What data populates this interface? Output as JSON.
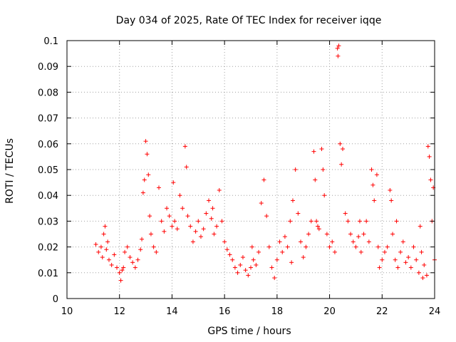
{
  "chart_data": {
    "type": "scatter",
    "title": "Day 034 of 2025, Rate Of TEC Index for receiver iqqe",
    "xlabel": "GPS time / hours",
    "ylabel": "ROTI / TECUs",
    "xlim": [
      10,
      24
    ],
    "ylim": [
      0,
      0.1
    ],
    "x_ticks": [
      10,
      12,
      14,
      16,
      18,
      20,
      22,
      24
    ],
    "y_ticks": [
      0,
      0.01,
      0.02,
      0.03,
      0.04,
      0.05,
      0.06,
      0.07,
      0.08,
      0.09,
      0.1
    ],
    "x_tick_labels": [
      "10",
      "12",
      "14",
      "16",
      "18",
      "20",
      "22",
      "24"
    ],
    "y_tick_labels": [
      "0",
      "0.01",
      "0.02",
      "0.03",
      "0.04",
      "0.05",
      "0.06",
      "0.07",
      "0.08",
      "0.09",
      "0.1"
    ],
    "grid": true,
    "marker": "plus",
    "color": "#ff0000",
    "series": [
      {
        "points": [
          [
            11.1,
            0.021
          ],
          [
            11.2,
            0.018
          ],
          [
            11.3,
            0.02
          ],
          [
            11.35,
            0.016
          ],
          [
            11.4,
            0.025
          ],
          [
            11.45,
            0.028
          ],
          [
            11.5,
            0.019
          ],
          [
            11.55,
            0.022
          ],
          [
            11.6,
            0.015
          ],
          [
            11.7,
            0.013
          ],
          [
            11.8,
            0.017
          ],
          [
            11.9,
            0.012
          ],
          [
            12.0,
            0.01
          ],
          [
            12.05,
            0.007
          ],
          [
            12.1,
            0.011
          ],
          [
            12.2,
            0.018
          ],
          [
            12.3,
            0.02
          ],
          [
            12.4,
            0.016
          ],
          [
            12.5,
            0.014
          ],
          [
            12.6,
            0.012
          ],
          [
            12.7,
            0.015
          ],
          [
            12.8,
            0.019
          ],
          [
            12.85,
            0.023
          ],
          [
            12.9,
            0.041
          ],
          [
            12.95,
            0.046
          ],
          [
            13.0,
            0.061
          ],
          [
            13.05,
            0.056
          ],
          [
            13.1,
            0.048
          ],
          [
            13.15,
            0.032
          ],
          [
            13.2,
            0.025
          ],
          [
            13.3,
            0.02
          ],
          [
            13.4,
            0.018
          ],
          [
            13.5,
            0.043
          ],
          [
            13.6,
            0.03
          ],
          [
            13.7,
            0.026
          ],
          [
            13.8,
            0.035
          ],
          [
            13.9,
            0.032
          ],
          [
            14.0,
            0.028
          ],
          [
            14.1,
            0.03
          ],
          [
            14.2,
            0.027
          ],
          [
            14.3,
            0.04
          ],
          [
            14.4,
            0.035
          ],
          [
            14.5,
            0.059
          ],
          [
            14.55,
            0.051
          ],
          [
            14.6,
            0.032
          ],
          [
            14.7,
            0.028
          ],
          [
            14.8,
            0.022
          ],
          [
            14.9,
            0.026
          ],
          [
            15.0,
            0.03
          ],
          [
            15.1,
            0.024
          ],
          [
            15.2,
            0.027
          ],
          [
            15.3,
            0.033
          ],
          [
            15.4,
            0.038
          ],
          [
            15.5,
            0.031
          ],
          [
            15.6,
            0.025
          ],
          [
            15.7,
            0.028
          ],
          [
            15.8,
            0.042
          ],
          [
            15.9,
            0.03
          ],
          [
            16.0,
            0.022
          ],
          [
            16.1,
            0.019
          ],
          [
            16.2,
            0.017
          ],
          [
            16.3,
            0.015
          ],
          [
            16.4,
            0.012
          ],
          [
            16.5,
            0.01
          ],
          [
            16.6,
            0.013
          ],
          [
            16.7,
            0.016
          ],
          [
            16.8,
            0.011
          ],
          [
            16.9,
            0.009
          ],
          [
            17.0,
            0.012
          ],
          [
            17.1,
            0.015
          ],
          [
            17.2,
            0.013
          ],
          [
            17.3,
            0.018
          ],
          [
            17.4,
            0.037
          ],
          [
            17.5,
            0.046
          ],
          [
            17.6,
            0.032
          ],
          [
            17.7,
            0.02
          ],
          [
            17.8,
            0.012
          ],
          [
            17.9,
            0.008
          ],
          [
            18.0,
            0.015
          ],
          [
            18.1,
            0.022
          ],
          [
            18.2,
            0.018
          ],
          [
            18.3,
            0.024
          ],
          [
            18.4,
            0.02
          ],
          [
            18.5,
            0.03
          ],
          [
            18.6,
            0.038
          ],
          [
            18.7,
            0.05
          ],
          [
            18.8,
            0.033
          ],
          [
            18.9,
            0.022
          ],
          [
            19.0,
            0.016
          ],
          [
            19.1,
            0.02
          ],
          [
            19.2,
            0.025
          ],
          [
            19.3,
            0.03
          ],
          [
            19.4,
            0.057
          ],
          [
            19.45,
            0.046
          ],
          [
            19.5,
            0.03
          ],
          [
            19.6,
            0.027
          ],
          [
            19.7,
            0.058
          ],
          [
            19.75,
            0.05
          ],
          [
            19.8,
            0.04
          ],
          [
            19.9,
            0.025
          ],
          [
            20.0,
            0.02
          ],
          [
            20.1,
            0.022
          ],
          [
            20.2,
            0.018
          ],
          [
            20.3,
            0.097
          ],
          [
            20.32,
            0.094
          ],
          [
            20.35,
            0.098
          ],
          [
            20.4,
            0.06
          ],
          [
            20.45,
            0.052
          ],
          [
            20.5,
            0.058
          ],
          [
            20.6,
            0.033
          ],
          [
            20.7,
            0.03
          ],
          [
            20.8,
            0.025
          ],
          [
            20.9,
            0.022
          ],
          [
            21.0,
            0.02
          ],
          [
            21.1,
            0.024
          ],
          [
            21.2,
            0.018
          ],
          [
            21.3,
            0.025
          ],
          [
            21.4,
            0.03
          ],
          [
            21.5,
            0.022
          ],
          [
            21.6,
            0.05
          ],
          [
            21.65,
            0.044
          ],
          [
            21.7,
            0.038
          ],
          [
            21.8,
            0.048
          ],
          [
            21.85,
            0.02
          ],
          [
            21.9,
            0.012
          ],
          [
            22.0,
            0.015
          ],
          [
            22.1,
            0.018
          ],
          [
            22.2,
            0.02
          ],
          [
            22.3,
            0.042
          ],
          [
            22.35,
            0.038
          ],
          [
            22.4,
            0.025
          ],
          [
            22.5,
            0.015
          ],
          [
            22.6,
            0.012
          ],
          [
            22.7,
            0.018
          ],
          [
            22.8,
            0.022
          ],
          [
            22.9,
            0.014
          ],
          [
            23.0,
            0.016
          ],
          [
            23.1,
            0.012
          ],
          [
            23.2,
            0.02
          ],
          [
            23.3,
            0.015
          ],
          [
            23.4,
            0.01
          ],
          [
            23.5,
            0.018
          ],
          [
            23.6,
            0.013
          ],
          [
            23.7,
            0.009
          ],
          [
            23.75,
            0.059
          ],
          [
            23.8,
            0.055
          ],
          [
            23.85,
            0.046
          ],
          [
            23.9,
            0.03
          ],
          [
            23.95,
            0.043
          ],
          [
            24.0,
            0.015
          ],
          [
            12.15,
            0.012
          ],
          [
            14.05,
            0.045
          ],
          [
            15.55,
            0.035
          ],
          [
            17.05,
            0.02
          ],
          [
            18.55,
            0.014
          ],
          [
            19.55,
            0.028
          ],
          [
            21.15,
            0.03
          ],
          [
            22.55,
            0.03
          ],
          [
            23.45,
            0.028
          ],
          [
            23.55,
            0.008
          ]
        ]
      }
    ]
  }
}
